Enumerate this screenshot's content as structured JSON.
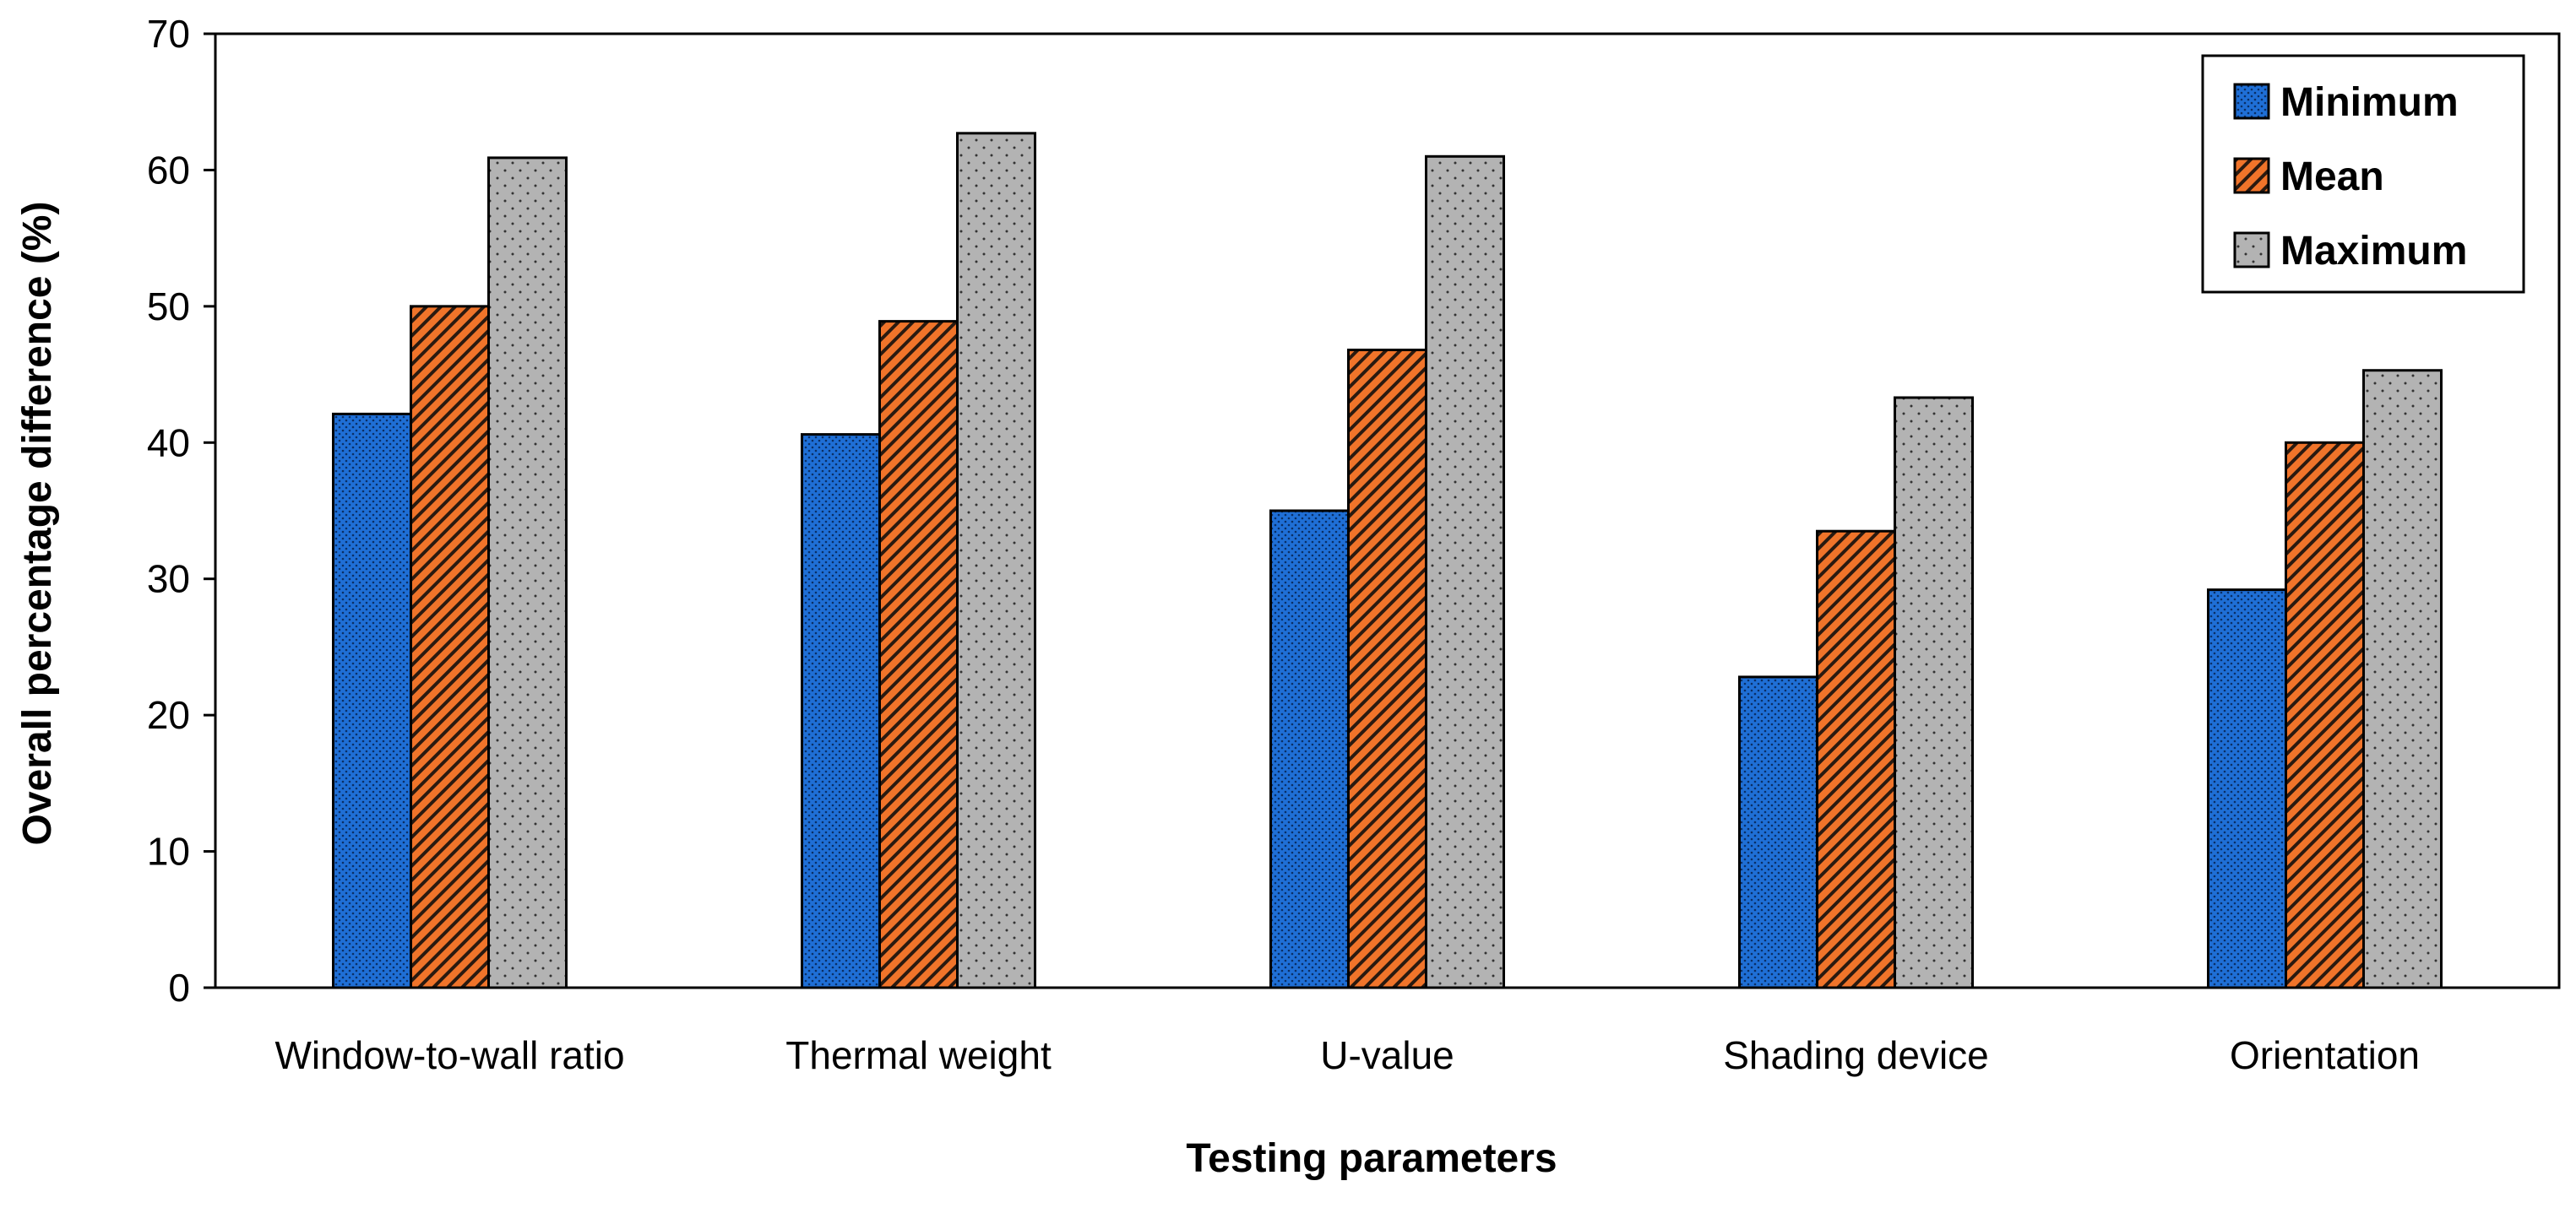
{
  "chart_data": {
    "type": "bar",
    "title": "",
    "xlabel": "Testing parameters",
    "ylabel": "Overall percentage difference (%)",
    "ylim": [
      0,
      70
    ],
    "yticks": [
      0,
      10,
      20,
      30,
      40,
      50,
      60,
      70
    ],
    "categories": [
      "Window-to-wall ratio",
      "Thermal weight",
      "U-value",
      "Shading device",
      "Orientation"
    ],
    "series": [
      {
        "name": "Minimum",
        "color": "#1f6fd6",
        "pattern": "dense-dots",
        "values": [
          42.1,
          40.6,
          35.0,
          22.8,
          29.2
        ]
      },
      {
        "name": "Mean",
        "color": "#f0742a",
        "pattern": "diagonal-hatch",
        "values": [
          50.0,
          48.9,
          46.8,
          33.5,
          40.0
        ]
      },
      {
        "name": "Maximum",
        "color": "#b3b3b3",
        "pattern": "sparse-dots",
        "values": [
          60.9,
          62.7,
          61.0,
          43.3,
          45.3
        ]
      }
    ],
    "legend_position": "top-right",
    "grid": false
  }
}
